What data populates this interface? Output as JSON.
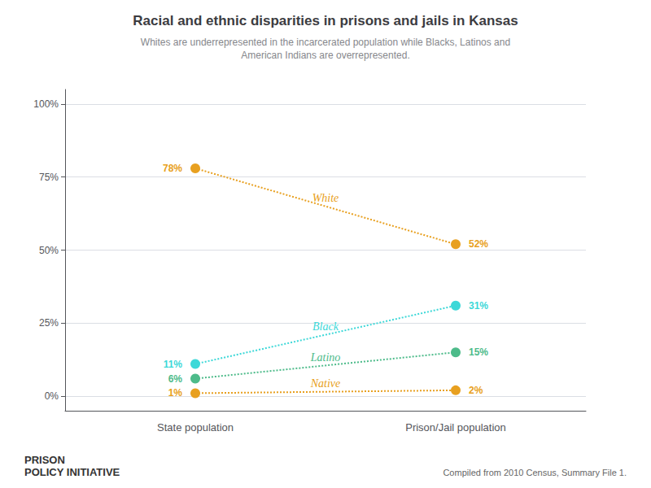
{
  "chart_data": {
    "type": "line",
    "title": "Racial and ethnic disparities in prisons and jails in Kansas",
    "subtitle": "Whites are underrepresented in the incarcerated population while Blacks, Latinos and\nAmerican Indians are overrepresented.",
    "annotations": [
      "PRISON\nPOLICY INITIATIVE",
      "Compiled from 2010 Census, Summary File 1."
    ],
    "categories": [
      "State population",
      "Prison/Jail population"
    ],
    "series": [
      {
        "name": "White",
        "color": "#e8a020",
        "line_style": "dotted",
        "values": [
          78,
          52
        ],
        "value_labels": [
          "78%",
          "52%"
        ]
      },
      {
        "name": "Black",
        "color": "#3dd8d8",
        "line_style": "dotted",
        "values": [
          11,
          31
        ],
        "value_labels": [
          "11%",
          "31%"
        ]
      },
      {
        "name": "Latino",
        "color": "#4dbb8a",
        "line_style": "dotted",
        "values": [
          6,
          15
        ],
        "value_labels": [
          "6%",
          "15%"
        ]
      },
      {
        "name": "Native",
        "color": "#e8a020",
        "line_style": "dotted",
        "values": [
          1,
          2
        ],
        "value_labels": [
          "1%",
          "2%"
        ]
      }
    ],
    "ylim": [
      -5,
      105
    ],
    "yticks": [
      {
        "value": 0,
        "label": "0%"
      },
      {
        "value": 25,
        "label": "25%"
      },
      {
        "value": 50,
        "label": "50%"
      },
      {
        "value": 75,
        "label": "75%"
      },
      {
        "value": 100,
        "label": "100%"
      }
    ],
    "grid": true,
    "data_labels": true
  }
}
